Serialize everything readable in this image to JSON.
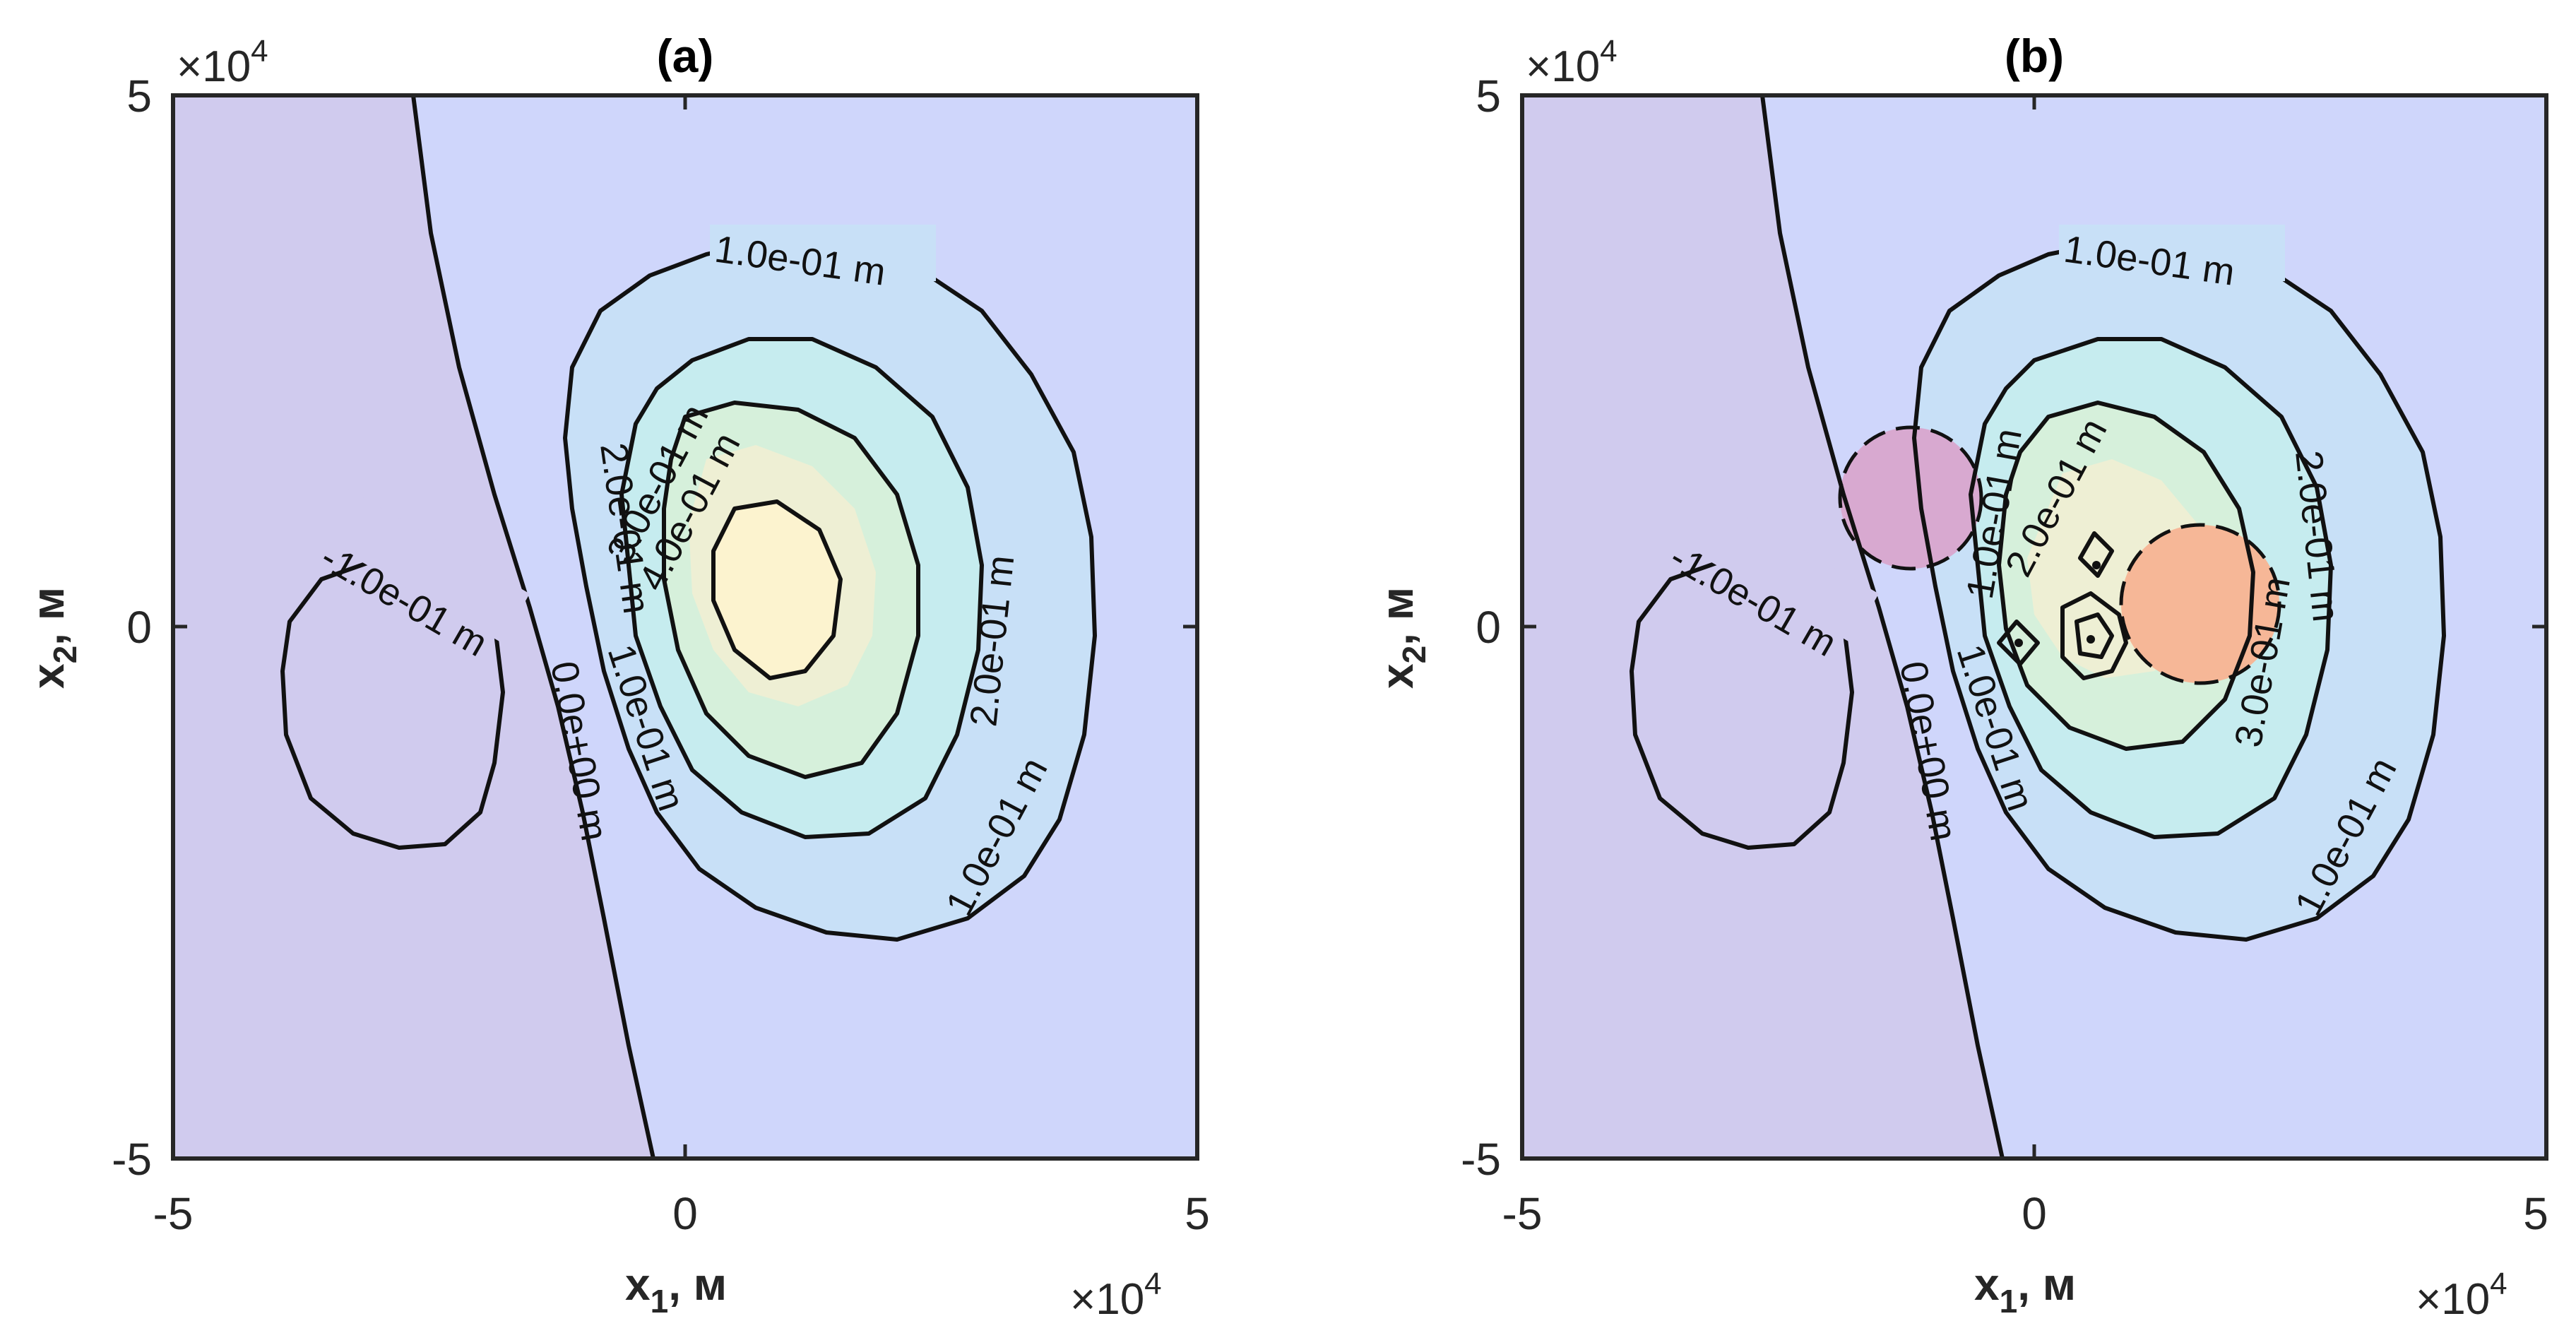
{
  "figure": {
    "panels": [
      {
        "title": "(a)",
        "xlabel_main": "x",
        "xlabel_sub": "1",
        "xlabel_unit": ", м",
        "ylabel_main": "x",
        "ylabel_sub": "2",
        "ylabel_unit": ", м",
        "x_ticks": [
          "-5",
          "0",
          "5"
        ],
        "y_ticks": [
          "5",
          "0",
          "-5"
        ],
        "x_exponent": "4",
        "y_exponent": "4",
        "exp_base": "×10"
      },
      {
        "title": "(b)",
        "xlabel_main": "x",
        "xlabel_sub": "1",
        "xlabel_unit": ", м",
        "ylabel_main": "x",
        "ylabel_sub": "2",
        "ylabel_unit": ", м",
        "x_ticks": [
          "-5",
          "0",
          "5"
        ],
        "y_ticks": [
          "5",
          "0",
          "-5"
        ],
        "x_exponent": "4",
        "y_exponent": "4",
        "exp_base": "×10"
      }
    ],
    "colors": {
      "background_fill": "#cfd6fb",
      "negative_fill": "#d0cbee",
      "level_0_1": "#c8e0f7",
      "level_0_2": "#c6ecef",
      "level_0_3": "#d6f0db",
      "level_0_4": "#eeefd4",
      "peak": "#fcf3cf",
      "magenta_circle": "#d8a9d0",
      "orange_circle": "#f6b797",
      "contour_line": "#111111"
    }
  },
  "chart_data": [
    {
      "type": "contour",
      "title": "(a)",
      "xlabel": "x1, м",
      "ylabel": "x2, м",
      "xlim": [
        -50000,
        50000
      ],
      "ylim": [
        -50000,
        50000
      ],
      "x_scale_exponent": 4,
      "y_scale_exponent": 4,
      "levels_m": [
        -0.1,
        0.0,
        0.1,
        0.2,
        0.3,
        0.4
      ],
      "contour_labels": [
        "-1.0e-01 m",
        "0.0e+00 m",
        "1.0e-01 m",
        "1.0e-01 m",
        "2.0e-01 m",
        "2.0e-01 m",
        "3.0e-01 m",
        "4.0e-01 m",
        "1.0e-01 m"
      ],
      "peak_location": [
        9000,
        5000
      ],
      "trough_location": [
        -27000,
        -5000
      ]
    },
    {
      "type": "contour",
      "title": "(b)",
      "xlabel": "x1, м",
      "ylabel": "x2, м",
      "xlim": [
        -50000,
        50000
      ],
      "ylim": [
        -50000,
        50000
      ],
      "x_scale_exponent": 4,
      "y_scale_exponent": 4,
      "levels_m": [
        -0.1,
        0.0,
        0.1,
        0.2,
        0.3
      ],
      "contour_labels": [
        "-1.0e-01 m",
        "0.0e+00 m",
        "1.0e-01 m",
        "1.0e-01 m",
        "1.0e-01 m",
        "2.0e-01 m",
        "2.0e-01 m",
        "3.0e-01 m",
        "3.0e-01 m",
        "1.0e-01 m"
      ],
      "circles": [
        {
          "center": [
            -13000,
            12000
          ],
          "radius": 7000,
          "color": "magenta"
        },
        {
          "center": [
            16000,
            2000
          ],
          "radius": 8500,
          "color": "orange"
        }
      ],
      "trough_location": [
        -27000,
        -5000
      ]
    }
  ]
}
